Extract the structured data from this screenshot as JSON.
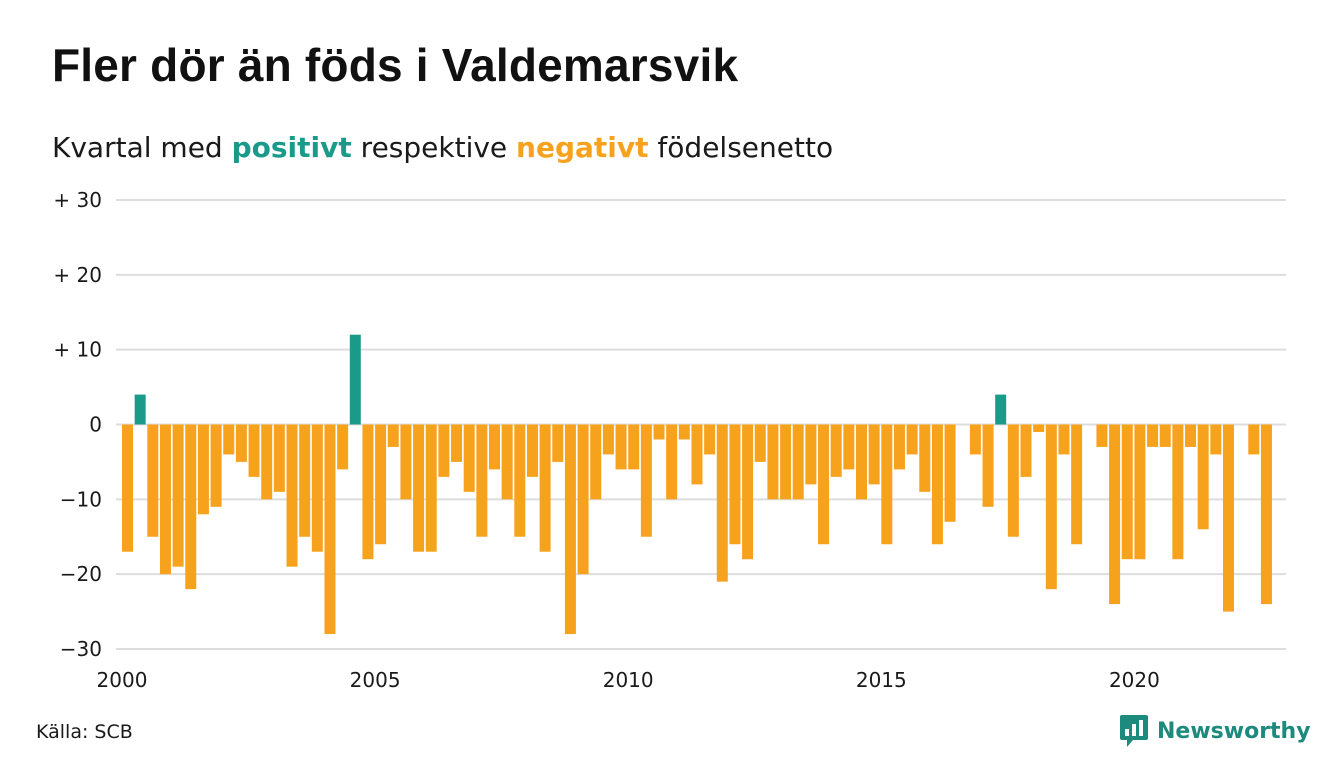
{
  "title": "Fler dör än föds i Valdemarsvik",
  "subtitle": {
    "part1": "Kvartal med ",
    "positive_word": "positivt",
    "part2": " respektive ",
    "negative_word": "negativt",
    "part3": " födelsenetto"
  },
  "source": "Källa: SCB",
  "brand": "Newsworthy",
  "colors": {
    "positive": "#1a9b8a",
    "negative": "#f7a21d",
    "grid": "#dddddd",
    "text": "#1a1a1a",
    "brand": "#1c8a7c"
  },
  "chart_data": {
    "type": "bar",
    "x_start": "2000 Q1",
    "x_ticks": [
      "2000",
      "2005",
      "2010",
      "2015",
      "2020"
    ],
    "y_ticks": [
      "+ 30",
      "+ 20",
      "+ 10",
      "0",
      "−10",
      "−20",
      "−30"
    ],
    "y_tick_values": [
      30,
      20,
      10,
      0,
      -10,
      -20,
      -30
    ],
    "ylim": [
      -30,
      30
    ],
    "grid": true,
    "xlabel": "",
    "ylabel": "",
    "values": [
      -17,
      4,
      -15,
      -20,
      -19,
      -22,
      -12,
      -11,
      -4,
      -5,
      -7,
      -10,
      -9,
      -19,
      -15,
      -17,
      -28,
      -6,
      12,
      -18,
      -16,
      -3,
      -10,
      -17,
      -17,
      -7,
      -5,
      -9,
      -15,
      -6,
      -10,
      -15,
      -7,
      -17,
      -5,
      -28,
      -20,
      -10,
      -4,
      -6,
      -6,
      -15,
      -2,
      -10,
      -2,
      -8,
      -4,
      -21,
      -16,
      -18,
      -5,
      -10,
      -10,
      -10,
      -8,
      -16,
      -7,
      -6,
      -10,
      -8,
      -16,
      -6,
      -4,
      -9,
      -16,
      -13,
      0,
      -4,
      -11,
      4,
      -15,
      -7,
      -1,
      -22,
      -4,
      -16,
      0,
      -3,
      -24,
      -18,
      -18,
      -3,
      -3,
      -18,
      -3,
      -14,
      -4,
      -25,
      0,
      -4,
      -24
    ]
  }
}
